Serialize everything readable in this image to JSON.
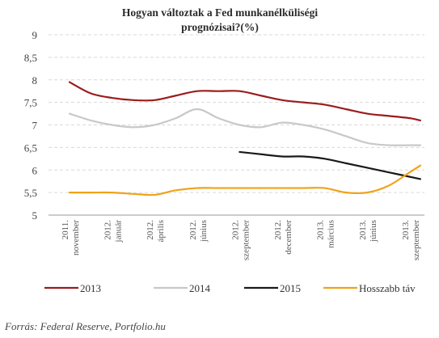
{
  "chart_data": {
    "type": "line",
    "title_line1": "Hogyan változtak a Fed munkanélküliségi",
    "title_line2": "prognózisai?(%)",
    "ylim": [
      5,
      9
    ],
    "yticks": [
      "9",
      "8,5",
      "8",
      "7,5",
      "7",
      "6,5",
      "6",
      "5,5",
      "5"
    ],
    "ytick_values": [
      9,
      8.5,
      8,
      7.5,
      7,
      6.5,
      6,
      5.5,
      5
    ],
    "grid": "horizontal dashed",
    "legend_position": "bottom",
    "x_labels": [
      [
        "2011.",
        "november"
      ],
      [
        "2012.",
        "január"
      ],
      [
        "2012.",
        "április"
      ],
      [
        "2012.",
        "június"
      ],
      [
        "2012.",
        "szeptember"
      ],
      [
        "2012.",
        "december"
      ],
      [
        "2013.",
        "március"
      ],
      [
        "2013.",
        "június"
      ],
      [
        "2013.",
        "szeptember"
      ]
    ],
    "series": [
      {
        "name": "2013",
        "color": "#9b1c1c",
        "points": [
          [
            0,
            7.95
          ],
          [
            0.5,
            7.7
          ],
          [
            1,
            7.6
          ],
          [
            1.5,
            7.55
          ],
          [
            2,
            7.55
          ],
          [
            2.5,
            7.65
          ],
          [
            3,
            7.75
          ],
          [
            3.5,
            7.75
          ],
          [
            4,
            7.75
          ],
          [
            4.5,
            7.65
          ],
          [
            5,
            7.55
          ],
          [
            5.5,
            7.5
          ],
          [
            6,
            7.45
          ],
          [
            6.5,
            7.35
          ],
          [
            7,
            7.25
          ],
          [
            7.5,
            7.2
          ],
          [
            8,
            7.15
          ],
          [
            8.25,
            7.1
          ]
        ]
      },
      {
        "name": "2014",
        "color": "#c8c8c8",
        "points": [
          [
            0,
            7.25
          ],
          [
            0.5,
            7.1
          ],
          [
            1,
            7.0
          ],
          [
            1.5,
            6.95
          ],
          [
            2,
            7.0
          ],
          [
            2.5,
            7.15
          ],
          [
            3,
            7.35
          ],
          [
            3.5,
            7.15
          ],
          [
            4,
            7.0
          ],
          [
            4.5,
            6.95
          ],
          [
            5,
            7.05
          ],
          [
            5.5,
            7.0
          ],
          [
            6,
            6.9
          ],
          [
            6.5,
            6.75
          ],
          [
            7,
            6.6
          ],
          [
            7.5,
            6.55
          ],
          [
            8,
            6.55
          ],
          [
            8.25,
            6.55
          ]
        ]
      },
      {
        "name": "2015",
        "color": "#1a1a1a",
        "points": [
          [
            4,
            6.4
          ],
          [
            4.5,
            6.35
          ],
          [
            5,
            6.3
          ],
          [
            5.5,
            6.3
          ],
          [
            6,
            6.25
          ],
          [
            6.5,
            6.15
          ],
          [
            7,
            6.05
          ],
          [
            7.5,
            5.95
          ],
          [
            8,
            5.85
          ],
          [
            8.25,
            5.8
          ]
        ]
      },
      {
        "name": "Hosszabb táv",
        "color": "#f0a21a",
        "points": [
          [
            0,
            5.5
          ],
          [
            0.5,
            5.5
          ],
          [
            1,
            5.5
          ],
          [
            1.5,
            5.47
          ],
          [
            2,
            5.45
          ],
          [
            2.5,
            5.55
          ],
          [
            3,
            5.6
          ],
          [
            3.5,
            5.6
          ],
          [
            4,
            5.6
          ],
          [
            4.5,
            5.6
          ],
          [
            5,
            5.6
          ],
          [
            5.5,
            5.6
          ],
          [
            6,
            5.6
          ],
          [
            6.5,
            5.5
          ],
          [
            7,
            5.5
          ],
          [
            7.5,
            5.65
          ],
          [
            8,
            5.95
          ],
          [
            8.25,
            6.1
          ]
        ]
      }
    ]
  },
  "source": "Forrás: Federal Reserve, Portfolio.hu"
}
